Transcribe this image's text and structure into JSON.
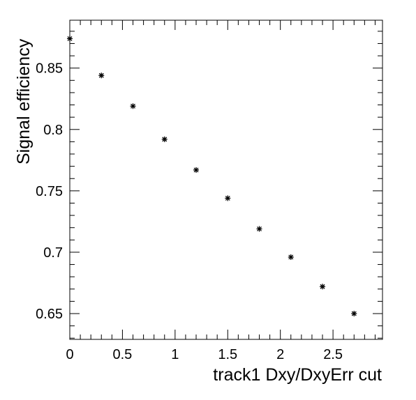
{
  "chart_data": {
    "type": "scatter",
    "title": "",
    "xlabel": "track1 Dxy/DxyErr cut",
    "ylabel": "Signal efficiency",
    "xlim": [
      0,
      2.97
    ],
    "ylim": [
      0.629,
      0.889
    ],
    "grid": false,
    "legend": "none",
    "marker": "asterisk",
    "x_ticks": [
      0,
      0.5,
      1,
      1.5,
      2,
      2.5
    ],
    "x_tick_labels": [
      "0",
      "0.5",
      "1",
      "1.5",
      "2",
      "2.5"
    ],
    "y_ticks": [
      0.65,
      0.7,
      0.75,
      0.8,
      0.85
    ],
    "y_tick_labels": [
      "0.65",
      "0.7",
      "0.75",
      "0.8",
      "0.85"
    ],
    "x": [
      0,
      0.3,
      0.6,
      0.9,
      1.2,
      1.5,
      1.8,
      2.1,
      2.4,
      2.7
    ],
    "y": [
      0.874,
      0.844,
      0.819,
      0.792,
      0.767,
      0.744,
      0.719,
      0.696,
      0.672,
      0.65
    ]
  }
}
